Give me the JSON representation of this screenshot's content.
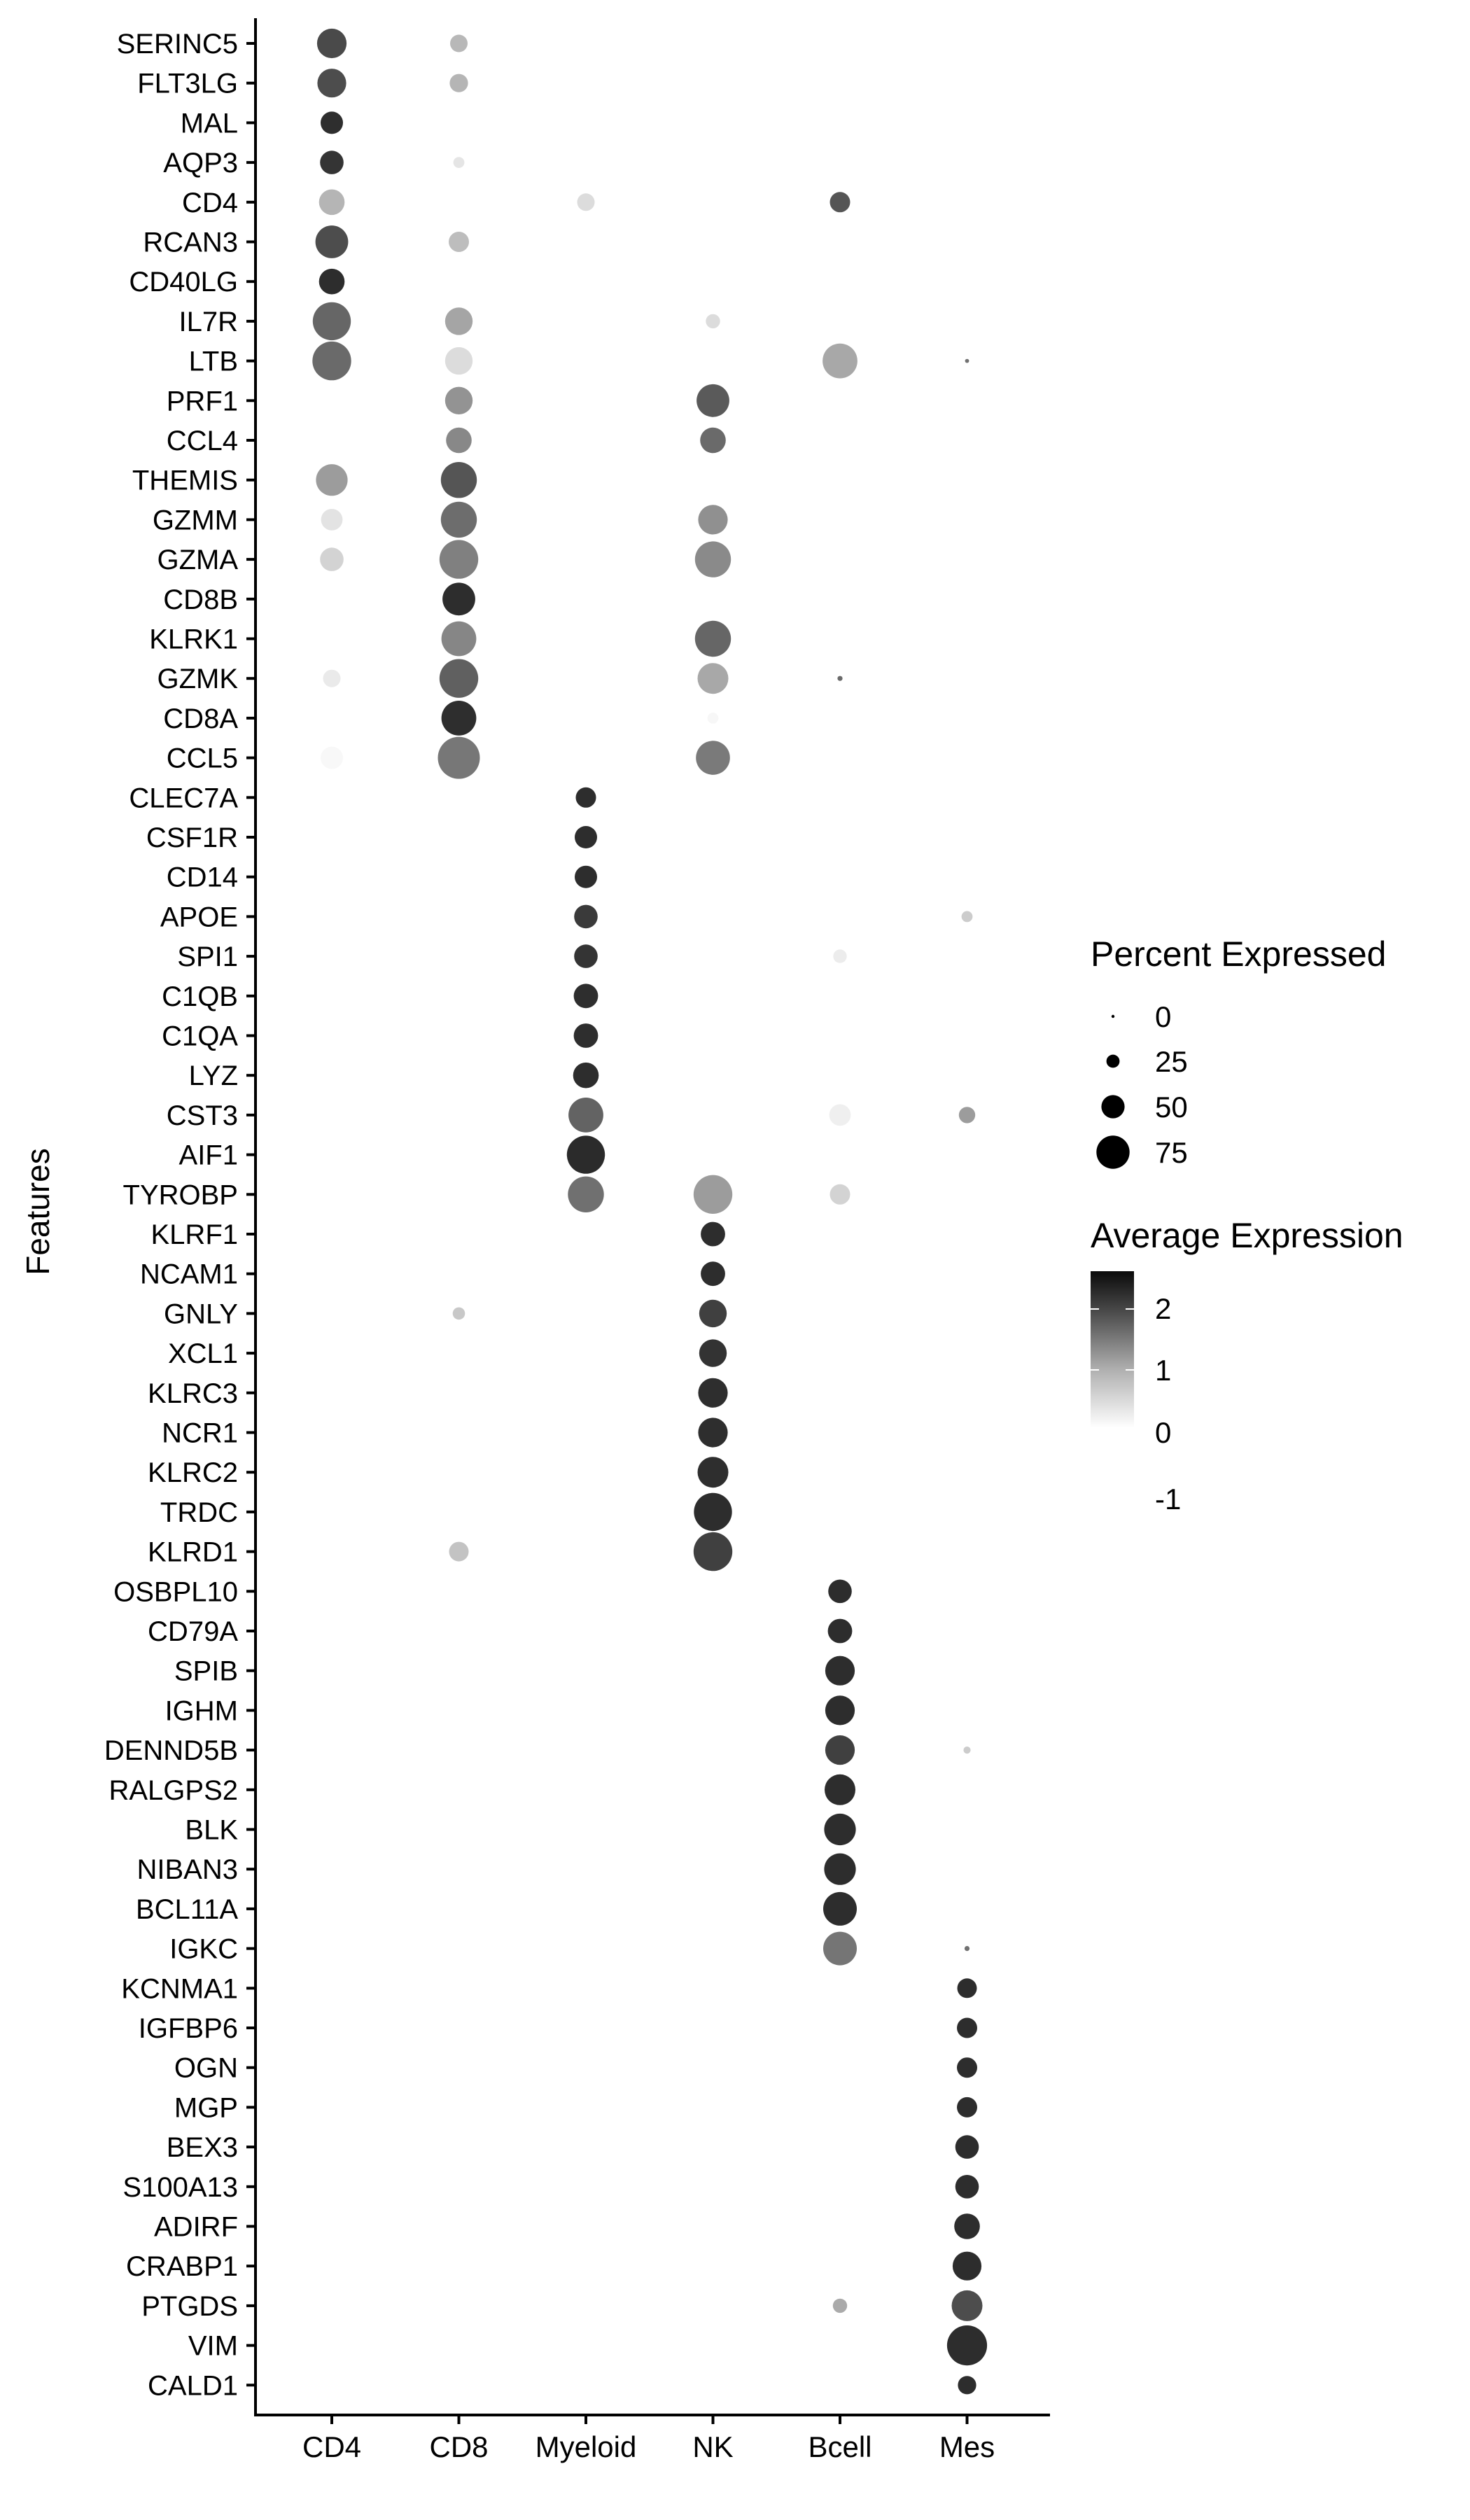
{
  "chart_data": {
    "type": "dot",
    "title": "",
    "xlabel": "",
    "ylabel": "Features",
    "categories": [
      "CD4",
      "CD8",
      "Myeloid",
      "NK",
      "Bcell",
      "Mes"
    ],
    "genes": [
      "SERINC5",
      "FLT3LG",
      "MAL",
      "AQP3",
      "CD4",
      "RCAN3",
      "CD40LG",
      "IL7R",
      "LTB",
      "PRF1",
      "CCL4",
      "THEMIS",
      "GZMM",
      "GZMA",
      "CD8B",
      "KLRK1",
      "GZMK",
      "CD8A",
      "CCL5",
      "CLEC7A",
      "CSF1R",
      "CD14",
      "APOE",
      "SPI1",
      "C1QB",
      "C1QA",
      "LYZ",
      "CST3",
      "AIF1",
      "TYROBP",
      "KLRF1",
      "NCAM1",
      "GNLY",
      "XCL1",
      "KLRC3",
      "NCR1",
      "KLRC2",
      "TRDC",
      "KLRD1",
      "OSBPL10",
      "CD79A",
      "SPIB",
      "IGHM",
      "DENND5B",
      "RALGPS2",
      "BLK",
      "NIBAN3",
      "BCL11A",
      "IGKC",
      "KCNMA1",
      "IGFBP6",
      "OGN",
      "MGP",
      "BEX3",
      "S100A13",
      "ADIRF",
      "CRABP1",
      "PTGDS",
      "VIM",
      "CALD1"
    ],
    "point_fields": [
      "gene",
      "group",
      "percent_expressed",
      "average_expression"
    ],
    "points": [
      [
        "SERINC5",
        "CD4",
        66,
        1.67
      ],
      [
        "SERINC5",
        "CD8",
        36,
        0.62
      ],
      [
        "FLT3LG",
        "CD4",
        64,
        1.64
      ],
      [
        "FLT3LG",
        "CD8",
        38,
        0.64
      ],
      [
        "MAL",
        "CD4",
        48,
        1.94
      ],
      [
        "AQP3",
        "CD4",
        51,
        1.88
      ],
      [
        "AQP3",
        "CD8",
        20,
        0.18
      ],
      [
        "CD4",
        "CD4",
        56,
        0.64
      ],
      [
        "CD4",
        "Myeloid",
        36,
        0.27
      ],
      [
        "CD4",
        "Bcell",
        43,
        1.57
      ],
      [
        "RCAN3",
        "CD4",
        74,
        1.64
      ],
      [
        "RCAN3",
        "CD8",
        43,
        0.57
      ],
      [
        "CD40LG",
        "CD4",
        56,
        1.95
      ],
      [
        "IL7R",
        "CD4",
        87,
        1.4
      ],
      [
        "IL7R",
        "CD8",
        61,
        0.8
      ],
      [
        "IL7R",
        "NK",
        28,
        0.27
      ],
      [
        "LTB",
        "CD4",
        89,
        1.37
      ],
      [
        "LTB",
        "CD8",
        61,
        0.27
      ],
      [
        "LTB",
        "Bcell",
        79,
        0.77
      ],
      [
        "LTB",
        "Mes",
        2.5,
        1.3
      ],
      [
        "PRF1",
        "CD8",
        61,
        0.97
      ],
      [
        "PRF1",
        "NK",
        74,
        1.52
      ],
      [
        "CCL4",
        "CD8",
        56,
        1.08
      ],
      [
        "CCL4",
        "NK",
        56,
        1.37
      ],
      [
        "THEMIS",
        "CD4",
        71,
        0.88
      ],
      [
        "THEMIS",
        "CD8",
        82,
        1.57
      ],
      [
        "GZMM",
        "CD4",
        46,
        0.2
      ],
      [
        "GZMM",
        "CD8",
        82,
        1.34
      ],
      [
        "GZMM",
        "NK",
        66,
        1.0
      ],
      [
        "GZMA",
        "CD4",
        51,
        0.36
      ],
      [
        "GZMA",
        "CD8",
        89,
        1.15
      ],
      [
        "GZMA",
        "NK",
        82,
        1.06
      ],
      [
        "CD8B",
        "CD8",
        74,
        1.95
      ],
      [
        "KLRK1",
        "CD8",
        79,
        1.1
      ],
      [
        "KLRK1",
        "NK",
        82,
        1.4
      ],
      [
        "GZMK",
        "CD4",
        36,
        0.13
      ],
      [
        "GZMK",
        "CD8",
        89,
        1.46
      ],
      [
        "GZMK",
        "NK",
        69,
        0.77
      ],
      [
        "GZMK",
        "Bcell",
        5,
        1.37
      ],
      [
        "CD8A",
        "CD8",
        79,
        1.94
      ],
      [
        "CD8A",
        "NK",
        20,
        0.01
      ],
      [
        "CCL5",
        "CD4",
        48,
        0.0
      ],
      [
        "CCL5",
        "CD8",
        97,
        1.24
      ],
      [
        "CCL5",
        "NK",
        77,
        1.21
      ],
      [
        "CLEC7A",
        "Myeloid",
        43,
        1.95
      ],
      [
        "CSF1R",
        "Myeloid",
        48,
        1.95
      ],
      [
        "CD14",
        "Myeloid",
        48,
        1.95
      ],
      [
        "APOE",
        "Myeloid",
        51,
        1.83
      ],
      [
        "APOE",
        "Mes",
        20,
        0.42
      ],
      [
        "SPI1",
        "Myeloid",
        51,
        1.88
      ],
      [
        "SPI1",
        "Bcell",
        26,
        0.12
      ],
      [
        "C1QB",
        "Myeloid",
        53,
        1.94
      ],
      [
        "C1QA",
        "Myeloid",
        53,
        1.94
      ],
      [
        "LYZ",
        "Myeloid",
        56,
        1.95
      ],
      [
        "CST3",
        "Myeloid",
        79,
        1.43
      ],
      [
        "CST3",
        "Bcell",
        46,
        0.09
      ],
      [
        "CST3",
        "Mes",
        33,
        0.88
      ],
      [
        "AIF1",
        "Myeloid",
        87,
        1.97
      ],
      [
        "TYROBP",
        "Myeloid",
        82,
        1.31
      ],
      [
        "TYROBP",
        "NK",
        89,
        0.88
      ],
      [
        "TYROBP",
        "Bcell",
        43,
        0.36
      ],
      [
        "KLRF1",
        "NK",
        53,
        1.95
      ],
      [
        "NCAM1",
        "NK",
        53,
        1.95
      ],
      [
        "GNLY",
        "NK",
        61,
        1.77
      ],
      [
        "GNLY",
        "CD8",
        23,
        0.46
      ],
      [
        "XCL1",
        "NK",
        61,
        1.89
      ],
      [
        "KLRC3",
        "NK",
        66,
        1.94
      ],
      [
        "NCR1",
        "NK",
        66,
        1.94
      ],
      [
        "KLRC2",
        "NK",
        69,
        1.94
      ],
      [
        "TRDC",
        "NK",
        87,
        1.95
      ],
      [
        "KLRD1",
        "NK",
        89,
        1.77
      ],
      [
        "KLRD1",
        "CD8",
        41,
        0.51
      ],
      [
        "OSBPL10",
        "Bcell",
        51,
        1.95
      ],
      [
        "CD79A",
        "Bcell",
        53,
        1.95
      ],
      [
        "SPIB",
        "Bcell",
        66,
        1.95
      ],
      [
        "IGHM",
        "Bcell",
        66,
        1.95
      ],
      [
        "DENND5B",
        "Bcell",
        66,
        1.77
      ],
      [
        "DENND5B",
        "Mes",
        10,
        0.42
      ],
      [
        "RALGPS2",
        "Bcell",
        69,
        1.95
      ],
      [
        "BLK",
        "Bcell",
        71,
        1.95
      ],
      [
        "NIBAN3",
        "Bcell",
        71,
        1.95
      ],
      [
        "BCL11A",
        "Bcell",
        76,
        1.95
      ],
      [
        "IGKC",
        "Bcell",
        76,
        1.26
      ],
      [
        "IGKC",
        "Mes",
        5,
        1.3
      ],
      [
        "KCNMA1",
        "Mes",
        41,
        1.95
      ],
      [
        "IGFBP6",
        "Mes",
        43,
        1.95
      ],
      [
        "OGN",
        "Mes",
        43,
        1.95
      ],
      [
        "MGP",
        "Mes",
        43,
        1.95
      ],
      [
        "BEX3",
        "Mes",
        51,
        1.95
      ],
      [
        "S100A13",
        "Mes",
        51,
        1.95
      ],
      [
        "ADIRF",
        "Mes",
        56,
        1.95
      ],
      [
        "CRABP1",
        "Mes",
        64,
        1.95
      ],
      [
        "PTGDS",
        "Mes",
        69,
        1.64
      ],
      [
        "PTGDS",
        "Bcell",
        28,
        0.75
      ],
      [
        "VIM",
        "Mes",
        92,
        1.95
      ],
      [
        "CALD1",
        "Mes",
        38,
        1.95
      ]
    ],
    "size_legend": {
      "title": "Percent Expressed",
      "breaks": [
        0,
        25,
        50,
        75
      ],
      "labels": [
        "0",
        "25",
        "50",
        "75"
      ]
    },
    "color_legend": {
      "title": "Average Expression",
      "range": [
        0,
        2.6
      ],
      "labels": [
        "2",
        "1",
        "0",
        "-1"
      ],
      "low_color": "#ffffff",
      "high_color": "#0a0a0a"
    },
    "grid": false,
    "legend_position": "right"
  }
}
